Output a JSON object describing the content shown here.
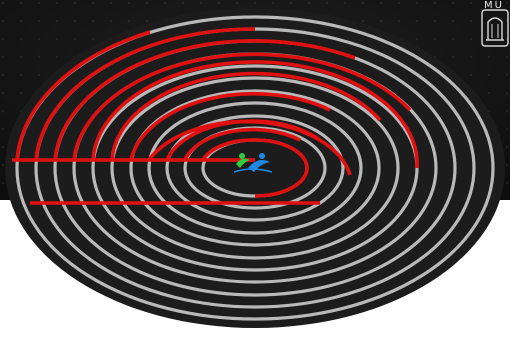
{
  "corner_text": "MU",
  "colors": {
    "background_dark": "#121212",
    "background_light": "#ffffff",
    "ellipse_fill": "#1c1c1c",
    "ring_gray": "#b9b9b9",
    "ring_red": "#e01010",
    "logo_green": "#2ecc40",
    "logo_blue": "#1e88e5"
  },
  "icons": {
    "center_logo": "swimmer-logo-icon",
    "corner_seal": "seal-emblem-icon"
  }
}
